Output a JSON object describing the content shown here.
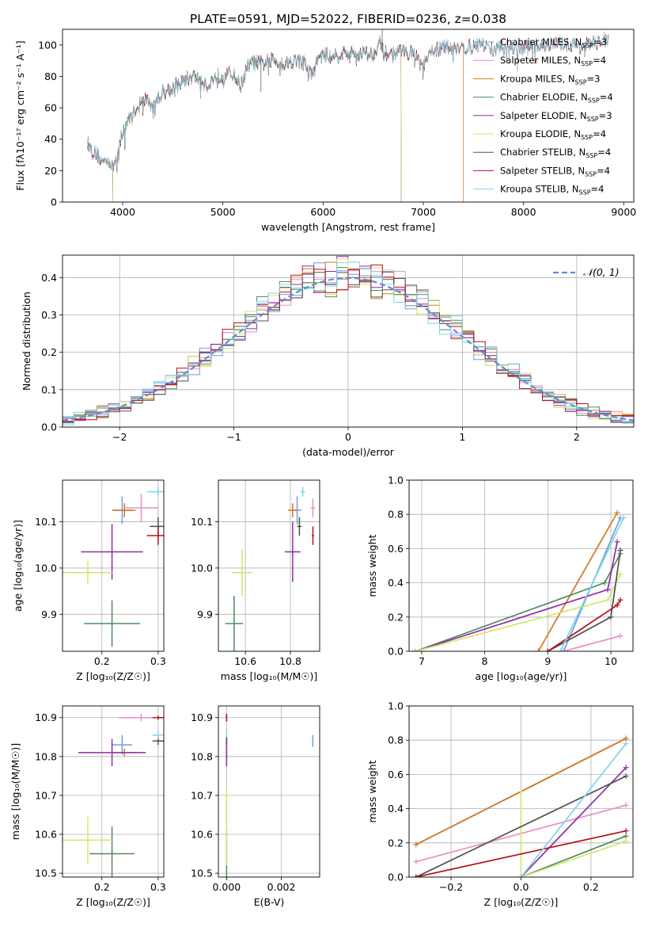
{
  "figure": {
    "title": "PLATE=0591, MJD=52022, FIBERID=0236, z=0.038"
  },
  "colors": {
    "Chabrier MILES": "#6d9ee0",
    "Salpeter MILES": "#e88fc4",
    "Kroupa MILES": "#d8761f",
    "Chabrier ELODIE": "#4e8a5e",
    "Salpeter ELODIE": "#8e2ca8",
    "Kroupa ELODIE": "#d4e56b",
    "Chabrier STELIB": "#505050",
    "Salpeter STELIB": "#b5121b",
    "Kroupa STELIB": "#7fd6e6",
    "gaussian": "#5a8fd8",
    "grid": "#b0b0b0"
  },
  "panels": {
    "spectrum": {
      "xlabel": "wavelength [Angstrom, rest frame]",
      "ylabel": "Flux [fλ10⁻¹⁷ erg cm⁻² s⁻¹ A⁻¹]"
    },
    "hist": {
      "xlabel": "(data-model)/error",
      "ylabel": "Normed distribution",
      "legend": "𝒩(0, 1)"
    },
    "age_Z": {
      "xlabel": "Z [log₁₀(Z/Z☉)]",
      "ylabel": "age  [log₁₀(age/yr)]"
    },
    "age_mass": {
      "xlabel": "mass [log₁₀(M/M☉)]"
    },
    "mw_age": {
      "xlabel": "age  [log₁₀(age/yr)]",
      "ylabel": "mass weight"
    },
    "mass_Z": {
      "xlabel": "Z [log₁₀(Z/Z☉)]",
      "ylabel": "mass [log₁₀(M/M☉)]"
    },
    "mass_ebv": {
      "xlabel": "E(B-V)"
    },
    "mw_Z": {
      "xlabel": "Z [log₁₀(Z/Z☉)]",
      "ylabel": "mass weight"
    }
  },
  "chart_data": [
    {
      "type": "line",
      "title": "PLATE=0591, MJD=52022, FIBERID=0236, z=0.038",
      "xlabel": "wavelength [Angstrom, rest frame]",
      "ylabel": "Flux [fλ10⁻¹⁷ erg cm⁻² s⁻¹ A⁻¹]",
      "xlim": [
        3400,
        9100
      ],
      "ylim": [
        0,
        110
      ],
      "xticks": [
        4000,
        5000,
        6000,
        7000,
        8000,
        9000
      ],
      "yticks": [
        0,
        20,
        40,
        60,
        80,
        100
      ],
      "grid": false,
      "legend_position": "top-right",
      "legend": [
        {
          "label": "Chabrier MILES, N",
          "sub": "SSP",
          "suffix": "=3"
        },
        {
          "label": "Salpeter MILES, N",
          "sub": "SSP",
          "suffix": "=4"
        },
        {
          "label": "Kroupa MILES, N",
          "sub": "SSP",
          "suffix": "=3"
        },
        {
          "label": "Chabrier ELODIE, N",
          "sub": "SSP",
          "suffix": "=4"
        },
        {
          "label": "Salpeter ELODIE, N",
          "sub": "SSP",
          "suffix": "=3"
        },
        {
          "label": "Kroupa ELODIE, N",
          "sub": "SSP",
          "suffix": "=4"
        },
        {
          "label": "Chabrier STELIB, N",
          "sub": "SSP",
          "suffix": "=4"
        },
        {
          "label": "Salpeter STELIB, N",
          "sub": "SSP",
          "suffix": "=4"
        },
        {
          "label": "Kroupa STELIB, N",
          "sub": "SSP",
          "suffix": "=4"
        }
      ],
      "continuum": [
        [
          3650,
          38
        ],
        [
          3700,
          32
        ],
        [
          3750,
          30
        ],
        [
          3800,
          25
        ],
        [
          3850,
          28
        ],
        [
          3900,
          22
        ],
        [
          3950,
          30
        ],
        [
          4000,
          45
        ],
        [
          4050,
          52
        ],
        [
          4100,
          55
        ],
        [
          4150,
          62
        ],
        [
          4200,
          64
        ],
        [
          4250,
          66
        ],
        [
          4300,
          58
        ],
        [
          4350,
          66
        ],
        [
          4400,
          70
        ],
        [
          4500,
          73
        ],
        [
          4600,
          77
        ],
        [
          4700,
          80
        ],
        [
          4800,
          78
        ],
        [
          4860,
          72
        ],
        [
          4900,
          79
        ],
        [
          5000,
          81
        ],
        [
          5100,
          82
        ],
        [
          5175,
          74
        ],
        [
          5250,
          86
        ],
        [
          5300,
          89
        ],
        [
          5400,
          88
        ],
        [
          5500,
          91
        ],
        [
          5600,
          88
        ],
        [
          5700,
          90
        ],
        [
          5800,
          90
        ],
        [
          5893,
          80
        ],
        [
          5950,
          92
        ],
        [
          6000,
          93
        ],
        [
          6100,
          94
        ],
        [
          6200,
          95
        ],
        [
          6300,
          94
        ],
        [
          6400,
          95
        ],
        [
          6500,
          94
        ],
        [
          6563,
          102
        ],
        [
          6600,
          95
        ],
        [
          6700,
          94
        ],
        [
          6800,
          96
        ],
        [
          6900,
          95
        ],
        [
          7000,
          86
        ],
        [
          7100,
          97
        ],
        [
          7200,
          98
        ],
        [
          7300,
          99
        ],
        [
          7400,
          98
        ],
        [
          7500,
          99
        ],
        [
          7600,
          100
        ],
        [
          7700,
          97
        ],
        [
          7800,
          99
        ],
        [
          8000,
          98
        ],
        [
          8200,
          100
        ],
        [
          8400,
          101
        ],
        [
          8600,
          99
        ],
        [
          8800,
          103
        ],
        [
          8850,
          104
        ]
      ],
      "series_ranges": [
        {
          "name": "Chabrier MILES",
          "x": [
            3650,
            7400
          ]
        },
        {
          "name": "Salpeter MILES",
          "x": [
            3650,
            7400
          ]
        },
        {
          "name": "Kroupa MILES",
          "x": [
            3650,
            7400
          ]
        },
        {
          "name": "Chabrier ELODIE",
          "x": [
            3900,
            6780
          ]
        },
        {
          "name": "Salpeter ELODIE",
          "x": [
            3900,
            6780
          ]
        },
        {
          "name": "Kroupa ELODIE",
          "x": [
            3900,
            6780
          ]
        },
        {
          "name": "Chabrier STELIB",
          "x": [
            3650,
            8850
          ]
        },
        {
          "name": "Salpeter STELIB",
          "x": [
            3650,
            8850
          ]
        },
        {
          "name": "Kroupa STELIB",
          "x": [
            3650,
            8850
          ]
        }
      ]
    },
    {
      "type": "line",
      "xlabel": "(data-model)/error",
      "ylabel": "Normed distribution",
      "xlim": [
        -2.5,
        2.5
      ],
      "ylim": [
        0,
        0.46
      ],
      "xticks": [
        -2,
        -1,
        0,
        1,
        2
      ],
      "yticks": [
        0.0,
        0.1,
        0.2,
        0.3,
        0.4
      ],
      "grid": true,
      "legend_position": "top-right",
      "series": [
        {
          "name": "𝒩(0, 1)",
          "function": "normal pdf, mean 0, sd 1",
          "x_range": [
            -2.5,
            2.5
          ]
        }
      ],
      "histogram_bin_width": 0.1,
      "histogram_series": [
        "Chabrier MILES",
        "Salpeter MILES",
        "Kroupa MILES",
        "Chabrier ELODIE",
        "Salpeter ELODIE",
        "Kroupa ELODIE",
        "Chabrier STELIB",
        "Salpeter STELIB",
        "Kroupa STELIB"
      ]
    },
    {
      "type": "scatter",
      "xlabel": "Z [log₁₀(Z/Z☉)]",
      "ylabel": "age  [log₁₀(age/yr)]",
      "xlim": [
        0.13,
        0.31
      ],
      "ylim": [
        9.82,
        10.19
      ],
      "xticks": [
        0.2,
        0.3
      ],
      "yticks": [
        9.9,
        10.0,
        10.1
      ],
      "grid": true,
      "points": [
        {
          "name": "Chabrier MILES",
          "x": 0.236,
          "y": 10.125,
          "xerr": 0.018,
          "yerr": 0.03
        },
        {
          "name": "Salpeter MILES",
          "x": 0.27,
          "y": 10.13,
          "xerr": 0.03,
          "yerr": 0.03
        },
        {
          "name": "Kroupa MILES",
          "x": 0.24,
          "y": 10.125,
          "xerr": 0.02,
          "yerr": 0.015
        },
        {
          "name": "Chabrier ELODIE",
          "x": 0.218,
          "y": 9.88,
          "xerr": 0.05,
          "yerr": 0.05
        },
        {
          "name": "Salpeter ELODIE",
          "x": 0.218,
          "y": 10.035,
          "xerr": 0.055,
          "yerr": 0.06
        },
        {
          "name": "Kroupa ELODIE",
          "x": 0.175,
          "y": 9.99,
          "xerr": 0.045,
          "yerr": 0.025
        },
        {
          "name": "Chabrier STELIB",
          "x": 0.3,
          "y": 10.09,
          "xerr": 0.015,
          "yerr": 0.02
        },
        {
          "name": "Salpeter STELIB",
          "x": 0.3,
          "y": 10.07,
          "xerr": 0.02,
          "yerr": 0.02
        },
        {
          "name": "Kroupa STELIB",
          "x": 0.3,
          "y": 10.165,
          "xerr": 0.02,
          "yerr": 0.01
        }
      ]
    },
    {
      "type": "scatter",
      "xlabel": "mass [log₁₀(M/M☉)]",
      "xlim": [
        10.48,
        10.93
      ],
      "ylim": [
        9.82,
        10.19
      ],
      "xticks": [
        10.6,
        10.8
      ],
      "yticks": [
        9.9,
        10.0,
        10.1
      ],
      "grid": true,
      "points": [
        {
          "name": "Chabrier MILES",
          "x": 10.83,
          "y": 10.125,
          "xerr": 0.02,
          "yerr": 0.03
        },
        {
          "name": "Salpeter MILES",
          "x": 10.9,
          "y": 10.13,
          "xerr": 0.01,
          "yerr": 0.02
        },
        {
          "name": "Kroupa MILES",
          "x": 10.81,
          "y": 10.125,
          "xerr": 0.02,
          "yerr": 0.015
        },
        {
          "name": "Chabrier ELODIE",
          "x": 10.55,
          "y": 9.88,
          "xerr": 0.04,
          "yerr": 0.06
        },
        {
          "name": "Salpeter ELODIE",
          "x": 10.81,
          "y": 10.035,
          "xerr": 0.035,
          "yerr": 0.065
        },
        {
          "name": "Kroupa ELODIE",
          "x": 10.585,
          "y": 9.99,
          "xerr": 0.045,
          "yerr": 0.05
        },
        {
          "name": "Chabrier STELIB",
          "x": 10.84,
          "y": 10.09,
          "xerr": 0.01,
          "yerr": 0.02
        },
        {
          "name": "Salpeter STELIB",
          "x": 10.9,
          "y": 10.07,
          "xerr": 0.005,
          "yerr": 0.02
        },
        {
          "name": "Kroupa STELIB",
          "x": 10.855,
          "y": 10.165,
          "xerr": 0.01,
          "yerr": 0.01
        }
      ]
    },
    {
      "type": "line",
      "xlabel": "age  [log₁₀(age/yr)]",
      "ylabel": "mass weight",
      "xlim": [
        6.8,
        10.35
      ],
      "ylim": [
        0,
        1
      ],
      "xticks": [
        7,
        8,
        9,
        10
      ],
      "yticks": [
        0.0,
        0.2,
        0.4,
        0.6,
        0.8,
        1.0
      ],
      "grid": true,
      "series": [
        {
          "name": "Chabrier MILES",
          "x": [
            9.25,
            10.15
          ],
          "y": [
            0.0,
            0.78
          ]
        },
        {
          "name": "Salpeter MILES",
          "x": [
            9.25,
            10.15
          ],
          "y": [
            0.0,
            0.09
          ]
        },
        {
          "name": "Kroupa MILES",
          "x": [
            8.85,
            10.1
          ],
          "y": [
            0.0,
            0.81
          ]
        },
        {
          "name": "Chabrier ELODIE",
          "x": [
            6.9,
            9.9,
            10.15
          ],
          "y": [
            0.0,
            0.4,
            0.57
          ]
        },
        {
          "name": "Salpeter ELODIE",
          "x": [
            6.9,
            9.95,
            10.1
          ],
          "y": [
            0.0,
            0.36,
            0.64
          ]
        },
        {
          "name": "Kroupa ELODIE",
          "x": [
            6.9,
            9.95,
            10.15
          ],
          "y": [
            0.0,
            0.3,
            0.45
          ]
        },
        {
          "name": "Chabrier STELIB",
          "x": [
            9.0,
            10.0,
            10.15
          ],
          "y": [
            0.0,
            0.2,
            0.59
          ]
        },
        {
          "name": "Salpeter STELIB",
          "x": [
            9.0,
            10.1,
            10.15
          ],
          "y": [
            0.0,
            0.27,
            0.3
          ]
        },
        {
          "name": "Kroupa STELIB",
          "x": [
            9.2,
            10.2
          ],
          "y": [
            0.0,
            0.78
          ]
        }
      ]
    },
    {
      "type": "scatter",
      "xlabel": "Z [log₁₀(Z/Z☉)]",
      "ylabel": "mass [log₁₀(M/M☉)]",
      "xlim": [
        0.13,
        0.31
      ],
      "ylim": [
        10.49,
        10.93
      ],
      "xticks": [
        0.2,
        0.3
      ],
      "yticks": [
        10.5,
        10.6,
        10.7,
        10.8,
        10.9
      ],
      "grid": true,
      "points": [
        {
          "name": "Chabrier MILES",
          "x": 0.236,
          "y": 10.83,
          "xerr": 0.018,
          "yerr": 0.025
        },
        {
          "name": "Salpeter MILES",
          "x": 0.27,
          "y": 10.9,
          "xerr": 0.04,
          "yerr": 0.01
        },
        {
          "name": "Kroupa MILES",
          "x": 0.24,
          "y": 10.81,
          "xerr": 0.02,
          "yerr": 0.01
        },
        {
          "name": "Chabrier ELODIE",
          "x": 0.218,
          "y": 10.55,
          "xerr": 0.04,
          "yerr": 0.07
        },
        {
          "name": "Salpeter ELODIE",
          "x": 0.218,
          "y": 10.81,
          "xerr": 0.06,
          "yerr": 0.035
        },
        {
          "name": "Kroupa ELODIE",
          "x": 0.175,
          "y": 10.585,
          "xerr": 0.045,
          "yerr": 0.06
        },
        {
          "name": "Chabrier STELIB",
          "x": 0.3,
          "y": 10.84,
          "xerr": 0.01,
          "yerr": 0.01
        },
        {
          "name": "Salpeter STELIB",
          "x": 0.3,
          "y": 10.9,
          "xerr": 0.01,
          "yerr": 0.005
        },
        {
          "name": "Kroupa STELIB",
          "x": 0.3,
          "y": 10.855,
          "xerr": 0.01,
          "yerr": 0.01
        }
      ]
    },
    {
      "type": "scatter",
      "xlabel": "E(B-V)",
      "xlim": [
        -0.0003,
        0.0034
      ],
      "ylim": [
        10.49,
        10.93
      ],
      "xticks": [
        0.0,
        0.002
      ],
      "yticks": [
        10.5,
        10.6,
        10.7,
        10.8,
        10.9
      ],
      "grid": true,
      "points": [
        {
          "name": "Chabrier MILES",
          "x": 0.00315,
          "y": 10.84,
          "xerr": 0,
          "yerr": 0.015
        },
        {
          "name": "Salpeter MILES",
          "x": 0.0,
          "y": 10.9,
          "xerr": 0,
          "yerr": 0.01
        },
        {
          "name": "Kroupa MILES",
          "x": 0.0,
          "y": 10.81,
          "xerr": 0,
          "yerr": 0.01
        },
        {
          "name": "Chabrier ELODIE",
          "x": 0.0,
          "y": 10.55,
          "xerr": 0,
          "yerr": 0.07
        },
        {
          "name": "Salpeter ELODIE",
          "x": 0.0,
          "y": 10.81,
          "xerr": 0,
          "yerr": 0.035
        },
        {
          "name": "Kroupa ELODIE",
          "x": 0.0,
          "y": 10.62,
          "xerr": 0,
          "yerr": 0.1
        },
        {
          "name": "Chabrier STELIB",
          "x": 0.0,
          "y": 10.84,
          "xerr": 0,
          "yerr": 0.01
        },
        {
          "name": "Salpeter STELIB",
          "x": 0.0,
          "y": 10.9,
          "xerr": 0,
          "yerr": 0.01
        },
        {
          "name": "Kroupa STELIB",
          "x": 0.0,
          "y": 10.86,
          "xerr": 0,
          "yerr": 0.01
        }
      ]
    },
    {
      "type": "line",
      "xlabel": "Z [log₁₀(Z/Z☉)]",
      "ylabel": "mass weight",
      "xlim": [
        -0.32,
        0.32
      ],
      "ylim": [
        0,
        1
      ],
      "xticks": [
        -0.2,
        0.0,
        0.2
      ],
      "yticks": [
        0.0,
        0.2,
        0.4,
        0.6,
        0.8,
        1.0
      ],
      "grid": true,
      "series": [
        {
          "name": "Chabrier MILES",
          "x": [
            -0.3,
            0.3
          ],
          "y": [
            0.19,
            0.81
          ]
        },
        {
          "name": "Salpeter MILES",
          "x": [
            -0.3,
            0.3
          ],
          "y": [
            0.09,
            0.42
          ]
        },
        {
          "name": "Kroupa MILES",
          "x": [
            -0.3,
            0.3
          ],
          "y": [
            0.19,
            0.81
          ]
        },
        {
          "name": "Chabrier ELODIE",
          "x": [
            0.0,
            0.3
          ],
          "y": [
            0.0,
            0.24
          ]
        },
        {
          "name": "Salpeter ELODIE",
          "x": [
            0.0,
            0.3
          ],
          "y": [
            0.0,
            0.64
          ]
        },
        {
          "name": "Kroupa ELODIE",
          "x": [
            0.0,
            0.0,
            0.3
          ],
          "y": [
            0.5,
            0.0,
            0.21
          ]
        },
        {
          "name": "Chabrier STELIB",
          "x": [
            -0.3,
            0.3
          ],
          "y": [
            0.0,
            0.59
          ]
        },
        {
          "name": "Salpeter STELIB",
          "x": [
            -0.3,
            0.3
          ],
          "y": [
            0.0,
            0.27
          ]
        },
        {
          "name": "Kroupa STELIB",
          "x": [
            0.0,
            0.3
          ],
          "y": [
            0.0,
            0.78
          ]
        }
      ]
    }
  ]
}
